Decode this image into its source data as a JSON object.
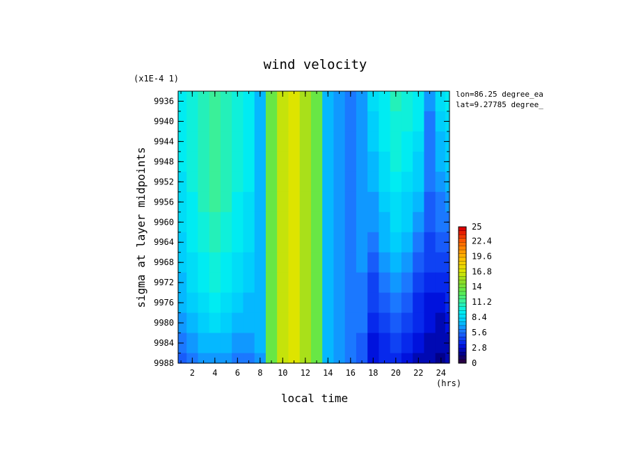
{
  "chart_data": {
    "type": "heatmap",
    "title": "wind velocity",
    "xlabel": "local time",
    "ylabel": "sigma at layer midpoints",
    "x_unit_label": "(hrs)",
    "y_scale_label": "(x1E-4 1)",
    "info": [
      "lon=86.25 degree_ea",
      "lat=9.27785 degree_"
    ],
    "xlim": [
      0.75,
      24.75
    ],
    "ylim": [
      9934,
      9988
    ],
    "y_inverted": true,
    "x_ticks": [
      2,
      4,
      6,
      8,
      10,
      12,
      14,
      16,
      18,
      20,
      22,
      24
    ],
    "y_ticks": [
      9936,
      9940,
      9944,
      9948,
      9952,
      9956,
      9960,
      9964,
      9968,
      9972,
      9976,
      9980,
      9984,
      9988
    ],
    "colorbar": {
      "min": 0,
      "max": 25,
      "levels": 36,
      "tick_labels": [
        "25",
        "22.4",
        "19.6",
        "16.8",
        "14",
        "11.2",
        "8.4",
        "5.6",
        "2.8",
        "0"
      ],
      "tick_values": [
        25,
        22.4,
        19.6,
        16.8,
        14,
        11.2,
        8.4,
        5.6,
        2.8,
        0
      ]
    },
    "x": [
      0.75,
      1,
      2,
      3,
      4,
      5,
      6,
      7,
      8,
      9,
      10,
      11,
      12,
      13,
      14,
      15,
      16,
      17,
      18,
      19,
      20,
      21,
      22,
      23,
      24,
      24.75
    ],
    "y": [
      9934,
      9936,
      9940,
      9944,
      9948,
      9952,
      9956,
      9960,
      9964,
      9968,
      9972,
      9976,
      9980,
      9984,
      9988
    ],
    "z": [
      [
        9.6,
        9.6,
        10.3,
        11.0,
        11.6,
        11.0,
        10.3,
        9.4,
        7.4,
        13.5,
        16.0,
        17.0,
        15.8,
        13.2,
        7.4,
        6.4,
        6.2,
        6.8,
        8.5,
        9.6,
        10.6,
        10.2,
        9.5,
        6.4,
        8.5,
        9.2
      ],
      [
        9.6,
        9.6,
        10.3,
        11.0,
        11.6,
        11.0,
        10.3,
        9.4,
        7.4,
        13.5,
        16.0,
        17.0,
        15.8,
        13.2,
        7.4,
        6.4,
        6.2,
        6.8,
        8.5,
        9.6,
        10.6,
        10.2,
        9.5,
        6.4,
        8.5,
        9.2
      ],
      [
        9.5,
        9.5,
        10.2,
        11.0,
        11.6,
        11.0,
        10.2,
        9.4,
        7.4,
        13.5,
        16.0,
        17.0,
        15.8,
        13.2,
        7.4,
        6.4,
        6.2,
        6.8,
        8.3,
        9.5,
        10.4,
        10.0,
        9.1,
        6.2,
        8.1,
        8.8
      ],
      [
        9.4,
        9.4,
        10.1,
        10.9,
        11.5,
        10.9,
        10.1,
        9.3,
        7.4,
        13.5,
        16.0,
        17.0,
        15.8,
        13.2,
        7.4,
        6.4,
        6.2,
        6.8,
        8.0,
        9.2,
        10.1,
        9.7,
        8.7,
        6.0,
        7.6,
        8.3
      ],
      [
        9.2,
        9.2,
        10.0,
        10.8,
        11.4,
        10.8,
        10.0,
        9.2,
        7.4,
        13.5,
        16.0,
        17.0,
        15.8,
        13.2,
        7.4,
        6.4,
        6.2,
        6.8,
        7.6,
        8.9,
        9.8,
        9.3,
        8.2,
        5.8,
        7.2,
        7.8
      ],
      [
        9.0,
        9.0,
        9.9,
        10.7,
        11.3,
        10.7,
        9.9,
        9.1,
        7.4,
        13.5,
        16.0,
        17.0,
        15.8,
        13.2,
        7.4,
        6.4,
        6.2,
        6.7,
        7.2,
        8.5,
        9.4,
        8.8,
        7.7,
        5.6,
        6.7,
        7.2
      ],
      [
        8.8,
        8.8,
        9.7,
        10.5,
        11.2,
        10.5,
        9.7,
        8.9,
        7.4,
        13.5,
        16.0,
        17.0,
        15.8,
        13.2,
        7.4,
        6.4,
        6.2,
        6.6,
        6.8,
        8.1,
        9.0,
        8.3,
        7.1,
        5.4,
        6.2,
        6.6
      ],
      [
        8.5,
        8.5,
        9.5,
        10.3,
        11.0,
        10.3,
        9.5,
        8.8,
        7.4,
        13.5,
        16.0,
        17.0,
        15.8,
        13.2,
        7.4,
        6.4,
        6.2,
        6.5,
        6.3,
        7.6,
        8.6,
        7.8,
        6.5,
        5.1,
        5.6,
        5.9
      ],
      [
        8.2,
        8.2,
        9.2,
        10.0,
        10.7,
        10.0,
        9.2,
        8.6,
        7.4,
        13.5,
        16.0,
        17.0,
        15.8,
        13.2,
        7.4,
        6.4,
        6.2,
        6.4,
        5.8,
        7.1,
        8.0,
        7.2,
        5.9,
        4.8,
        5.0,
        5.3
      ],
      [
        7.9,
        7.9,
        8.9,
        9.7,
        10.4,
        9.7,
        8.9,
        8.3,
        7.4,
        13.5,
        16.0,
        17.0,
        15.8,
        13.2,
        7.4,
        6.4,
        6.2,
        6.3,
        5.3,
        6.5,
        7.3,
        6.6,
        5.3,
        4.4,
        4.4,
        4.7
      ],
      [
        7.5,
        7.5,
        8.5,
        9.3,
        10.0,
        9.3,
        8.5,
        8.0,
        7.4,
        13.5,
        16.0,
        17.0,
        15.8,
        13.2,
        7.4,
        6.4,
        6.2,
        6.2,
        4.8,
        5.9,
        6.6,
        5.9,
        4.7,
        3.9,
        3.8,
        4.1
      ],
      [
        7.0,
        7.0,
        8.0,
        8.8,
        9.5,
        8.8,
        8.0,
        7.6,
        7.4,
        13.5,
        16.0,
        17.0,
        15.8,
        13.2,
        7.4,
        6.4,
        6.2,
        6.0,
        4.3,
        5.3,
        5.9,
        5.2,
        4.1,
        3.3,
        3.2,
        3.5
      ],
      [
        6.5,
        6.5,
        7.4,
        8.1,
        8.6,
        8.1,
        7.4,
        7.2,
        7.3,
        13.5,
        16.0,
        17.0,
        15.8,
        13.2,
        7.4,
        6.4,
        6.2,
        5.8,
        3.8,
        4.6,
        5.2,
        4.5,
        3.5,
        2.8,
        2.7,
        3.0
      ],
      [
        5.9,
        5.9,
        6.7,
        7.2,
        7.5,
        7.2,
        6.7,
        6.6,
        7.1,
        13.5,
        16.0,
        17.0,
        15.8,
        13.2,
        7.4,
        6.4,
        6.2,
        5.5,
        3.3,
        4.0,
        4.5,
        3.8,
        3.0,
        2.4,
        2.3,
        2.6
      ],
      [
        5.3,
        5.3,
        6.0,
        6.4,
        6.6,
        6.4,
        6.0,
        6.0,
        6.9,
        13.5,
        16.0,
        17.0,
        15.8,
        13.2,
        7.4,
        6.4,
        6.2,
        5.3,
        2.9,
        3.6,
        4.0,
        3.3,
        2.6,
        2.1,
        2.0,
        2.3
      ]
    ]
  }
}
